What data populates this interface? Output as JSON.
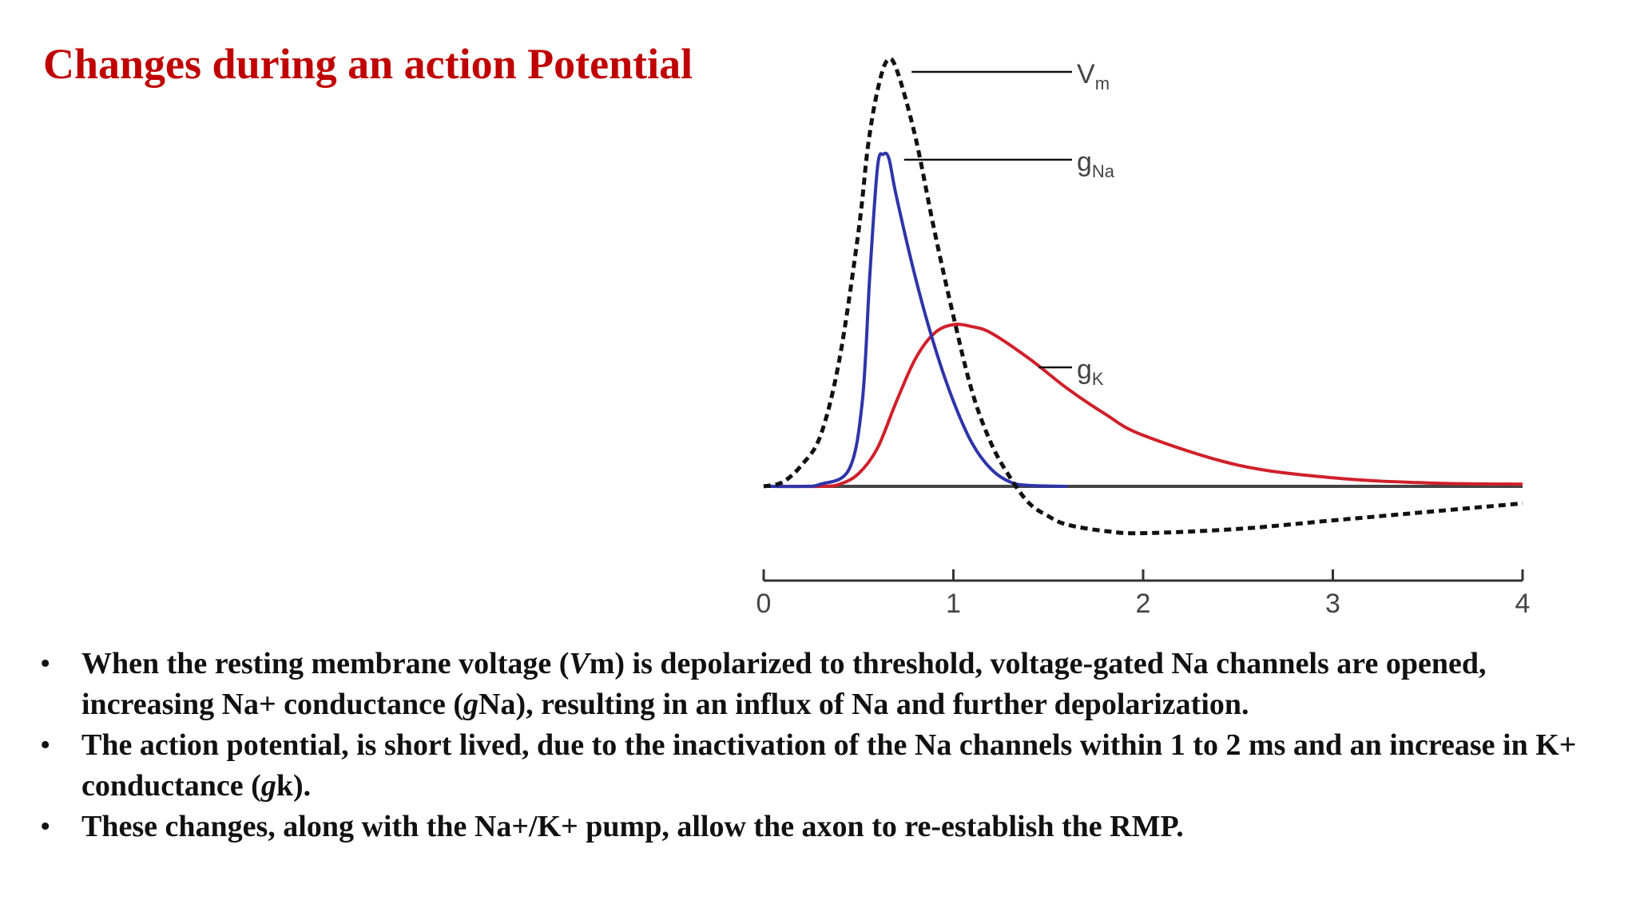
{
  "slide": {
    "title": "Changes during an action Potential",
    "title_color": "#c00000",
    "bullets": [
      {
        "parts": [
          {
            "text": "When the resting membrane voltage (",
            "italic": false
          },
          {
            "text": "V",
            "italic": true
          },
          {
            "text": "m) is depolarized to threshold, voltage-gated Na channels are opened, increasing Na+ conductance (",
            "italic": false
          },
          {
            "text": "g",
            "italic": true
          },
          {
            "text": "Na), resulting in an influx of Na and further depolarization.",
            "italic": false
          }
        ]
      },
      {
        "parts": [
          {
            "text": "The action potential, is short lived, due to the inactivation of the Na channels within 1 to 2 ms and an increase in K+ conductance (",
            "italic": false
          },
          {
            "text": "g",
            "italic": true
          },
          {
            "text": "k).",
            "italic": false
          }
        ]
      },
      {
        "parts": [
          {
            "text": "These changes, along with the Na+/K+ pump, allow the axon to re-establish the RMP.",
            "italic": false
          }
        ]
      }
    ]
  },
  "chart_data": {
    "type": "line",
    "xlim": [
      0,
      4
    ],
    "x_ticks": [
      "0",
      "1",
      "2",
      "3",
      "4"
    ],
    "grid": false,
    "series": [
      {
        "name": "Vm",
        "label_main": "V",
        "label_sub": "m",
        "color": "#111111",
        "style": "dashed",
        "points": [
          [
            0,
            0
          ],
          [
            0.1,
            0.01
          ],
          [
            0.2,
            0.05
          ],
          [
            0.3,
            0.12
          ],
          [
            0.4,
            0.3
          ],
          [
            0.5,
            0.6
          ],
          [
            0.55,
            0.8
          ],
          [
            0.6,
            0.93
          ],
          [
            0.65,
            1.0
          ],
          [
            0.7,
            0.98
          ],
          [
            0.8,
            0.82
          ],
          [
            0.9,
            0.6
          ],
          [
            1.0,
            0.4
          ],
          [
            1.1,
            0.22
          ],
          [
            1.2,
            0.1
          ],
          [
            1.3,
            0.02
          ],
          [
            1.4,
            -0.04
          ],
          [
            1.5,
            -0.07
          ],
          [
            1.6,
            -0.09
          ],
          [
            1.8,
            -0.105
          ],
          [
            2.0,
            -0.11
          ],
          [
            2.5,
            -0.1
          ],
          [
            3.0,
            -0.08
          ],
          [
            3.5,
            -0.06
          ],
          [
            4.0,
            -0.04
          ]
        ]
      },
      {
        "name": "gNa",
        "label_main": "g",
        "label_sub": "Na",
        "color": "#2e35a8",
        "style": "solid",
        "points": [
          [
            0,
            0
          ],
          [
            0.2,
            0
          ],
          [
            0.3,
            0.005
          ],
          [
            0.45,
            0.04
          ],
          [
            0.52,
            0.2
          ],
          [
            0.56,
            0.5
          ],
          [
            0.6,
            0.75
          ],
          [
            0.63,
            0.78
          ],
          [
            0.66,
            0.77
          ],
          [
            0.7,
            0.68
          ],
          [
            0.8,
            0.49
          ],
          [
            0.9,
            0.33
          ],
          [
            1.0,
            0.2
          ],
          [
            1.1,
            0.1
          ],
          [
            1.2,
            0.04
          ],
          [
            1.3,
            0.01
          ],
          [
            1.4,
            0.002
          ],
          [
            1.6,
            0.0
          ]
        ]
      },
      {
        "name": "gK",
        "label_main": "g",
        "label_sub": "K",
        "color": "#d0202a",
        "style": "solid",
        "points": [
          [
            0,
            0
          ],
          [
            0.3,
            0
          ],
          [
            0.4,
            0.005
          ],
          [
            0.5,
            0.03
          ],
          [
            0.6,
            0.09
          ],
          [
            0.7,
            0.2
          ],
          [
            0.8,
            0.3
          ],
          [
            0.9,
            0.36
          ],
          [
            1.0,
            0.38
          ],
          [
            1.1,
            0.375
          ],
          [
            1.2,
            0.36
          ],
          [
            1.4,
            0.3
          ],
          [
            1.6,
            0.23
          ],
          [
            1.8,
            0.17
          ],
          [
            2.0,
            0.12
          ],
          [
            2.5,
            0.05
          ],
          [
            3.0,
            0.02
          ],
          [
            3.5,
            0.008
          ],
          [
            4.0,
            0.005
          ]
        ]
      }
    ]
  }
}
